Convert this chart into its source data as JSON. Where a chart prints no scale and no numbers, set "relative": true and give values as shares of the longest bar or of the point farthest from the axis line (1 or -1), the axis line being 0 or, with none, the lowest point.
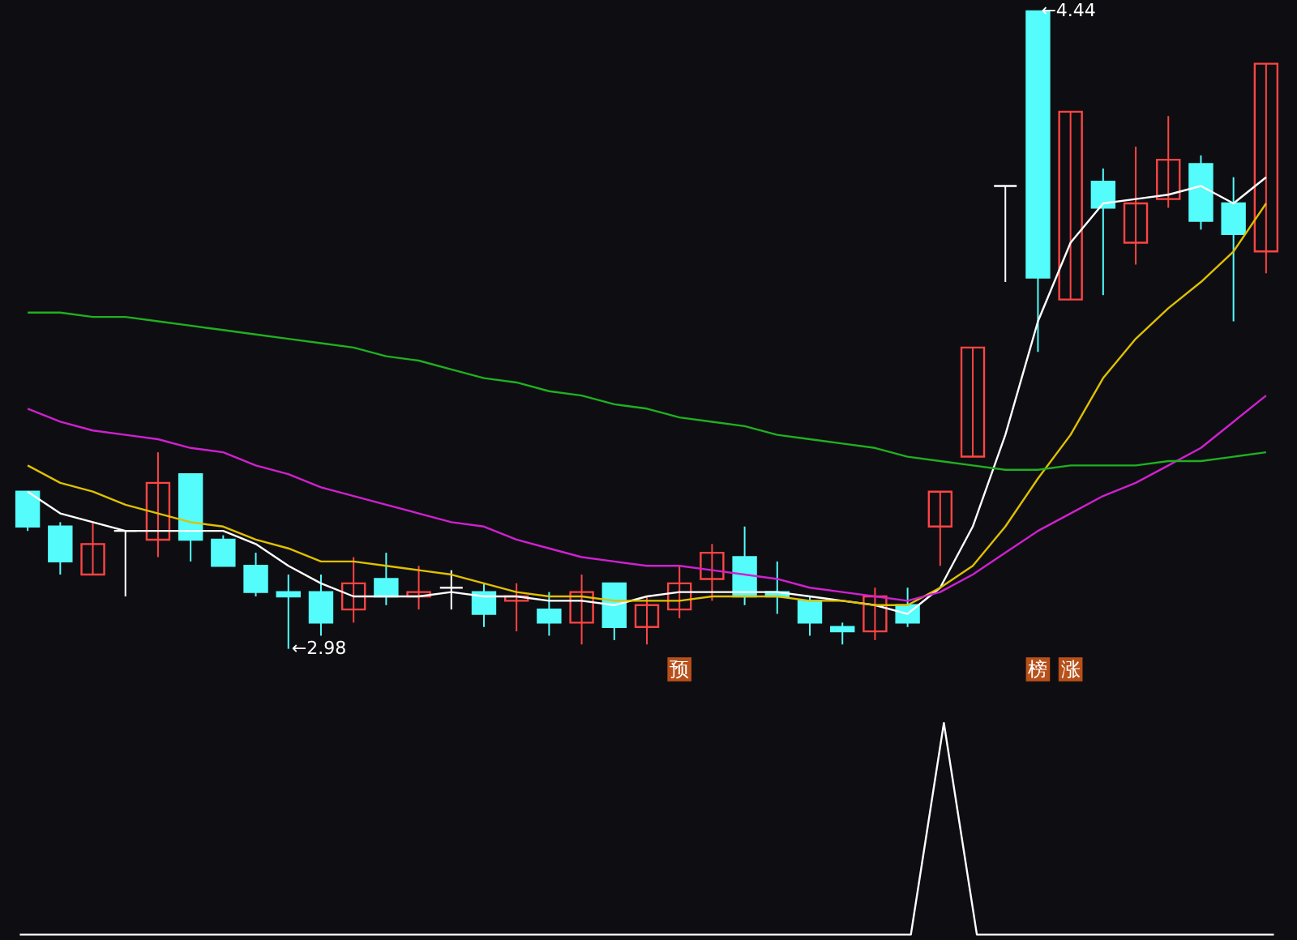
{
  "chart_data": [
    {
      "type": "candlestick",
      "categories": [
        null,
        null,
        null,
        null,
        null,
        null,
        null,
        null,
        null,
        null,
        null,
        null,
        null,
        null,
        null,
        null,
        null,
        null,
        null,
        null,
        null,
        null,
        null,
        null,
        null,
        null,
        null,
        null,
        null,
        null,
        null,
        null,
        null,
        null,
        null,
        null,
        null,
        null,
        null
      ],
      "ohlc": [
        [
          3.34,
          3.34,
          3.25,
          3.26
        ],
        [
          3.26,
          3.27,
          3.15,
          3.18
        ],
        [
          3.15,
          3.27,
          3.15,
          3.22
        ],
        [
          3.25,
          3.25,
          3.1,
          3.25
        ],
        [
          3.23,
          3.43,
          3.19,
          3.36
        ],
        [
          3.38,
          3.38,
          3.18,
          3.23
        ],
        [
          3.23,
          3.24,
          3.17,
          3.17
        ],
        [
          3.17,
          3.2,
          3.1,
          3.11
        ],
        [
          3.11,
          3.15,
          2.98,
          3.1
        ],
        [
          3.11,
          3.15,
          3.01,
          3.04
        ],
        [
          3.07,
          3.19,
          3.04,
          3.13
        ],
        [
          3.14,
          3.2,
          3.08,
          3.1
        ],
        [
          3.1,
          3.17,
          3.07,
          3.11
        ],
        [
          3.12,
          3.16,
          3.07,
          3.12
        ],
        [
          3.11,
          3.13,
          3.03,
          3.06
        ],
        [
          3.09,
          3.13,
          3.02,
          3.1
        ],
        [
          3.07,
          3.11,
          3.01,
          3.04
        ],
        [
          3.04,
          3.15,
          2.99,
          3.11
        ],
        [
          3.13,
          3.13,
          3.0,
          3.03
        ],
        [
          3.03,
          3.1,
          2.99,
          3.08
        ],
        [
          3.07,
          3.17,
          3.05,
          3.13
        ],
        [
          3.14,
          3.22,
          3.09,
          3.2
        ],
        [
          3.19,
          3.26,
          3.08,
          3.1
        ],
        [
          3.11,
          3.18,
          3.06,
          3.1
        ],
        [
          3.09,
          3.1,
          3.01,
          3.04
        ],
        [
          3.03,
          3.04,
          2.99,
          3.02
        ],
        [
          3.02,
          3.12,
          3.0,
          3.1
        ],
        [
          3.08,
          3.12,
          3.03,
          3.04
        ],
        [
          3.26,
          3.34,
          3.17,
          3.34
        ],
        [
          3.42,
          3.67,
          3.42,
          3.67
        ],
        [
          4.04,
          4.04,
          3.82,
          4.04
        ],
        [
          4.44,
          4.44,
          3.66,
          3.83
        ],
        [
          3.78,
          4.21,
          3.78,
          4.21
        ],
        [
          4.05,
          4.08,
          3.79,
          3.99
        ],
        [
          3.91,
          4.13,
          3.86,
          4.0
        ],
        [
          4.01,
          4.2,
          3.99,
          4.1
        ],
        [
          4.09,
          4.11,
          3.94,
          3.96
        ],
        [
          4.0,
          4.06,
          3.73,
          3.93
        ],
        [
          3.89,
          4.32,
          3.84,
          4.32
        ]
      ],
      "colors": [
        "#54fcfc",
        "#54fcfc",
        "#ff4444",
        "#ffffff",
        "#ff4444",
        "#54fcfc",
        "#54fcfc",
        "#54fcfc",
        "#54fcfc",
        "#54fcfc",
        "#ff4444",
        "#54fcfc",
        "#ff4444",
        "#ffffff",
        "#54fcfc",
        "#ff4444",
        "#54fcfc",
        "#ff4444",
        "#54fcfc",
        "#ff4444",
        "#ff4444",
        "#ff4444",
        "#54fcfc",
        "#54fcfc",
        "#54fcfc",
        "#54fcfc",
        "#ff4444",
        "#54fcfc",
        "#ff4444",
        "#ff4444",
        "#ffffff",
        "#54fcfc",
        "#ff4444",
        "#54fcfc",
        "#ff4444",
        "#ff4444",
        "#54fcfc",
        "#54fcfc",
        "#ff4444"
      ],
      "value_labels": [
        null,
        null,
        null,
        null,
        null,
        null,
        null,
        null,
        null,
        null,
        null,
        null,
        null,
        null,
        null,
        null,
        null,
        null,
        null,
        null,
        "预",
        null,
        null,
        null,
        null,
        null,
        null,
        null,
        null,
        null,
        null,
        "榜",
        "涨",
        null,
        null,
        null,
        null,
        null,
        null
      ],
      "series": [
        {
          "type": "line",
          "color": "#ffffff",
          "values": [
            3.34,
            3.29,
            3.27,
            3.25,
            3.25,
            3.25,
            3.25,
            3.22,
            3.17,
            3.13,
            3.1,
            3.1,
            3.1,
            3.11,
            3.1,
            3.1,
            3.09,
            3.09,
            3.08,
            3.1,
            3.11,
            3.11,
            3.11,
            3.11,
            3.1,
            3.09,
            3.08,
            3.06,
            3.12,
            3.26,
            3.47,
            3.73,
            3.91,
            4.0,
            4.01,
            4.02,
            4.04,
            4.0,
            4.06
          ]
        },
        {
          "type": "line",
          "color": "#e0c000",
          "values": [
            3.4,
            3.36,
            3.34,
            3.31,
            3.29,
            3.27,
            3.26,
            3.23,
            3.21,
            3.18,
            3.18,
            3.17,
            3.16,
            3.15,
            3.13,
            3.11,
            3.1,
            3.1,
            3.09,
            3.09,
            3.09,
            3.1,
            3.1,
            3.1,
            3.09,
            3.09,
            3.08,
            3.08,
            3.12,
            3.17,
            3.26,
            3.37,
            3.47,
            3.6,
            3.69,
            3.76,
            3.82,
            3.89,
            4.0
          ]
        },
        {
          "type": "line",
          "color": "#d020d0",
          "values": [
            3.53,
            3.5,
            3.48,
            3.47,
            3.46,
            3.44,
            3.43,
            3.4,
            3.38,
            3.35,
            3.33,
            3.31,
            3.29,
            3.27,
            3.26,
            3.23,
            3.21,
            3.19,
            3.18,
            3.17,
            3.17,
            3.16,
            3.15,
            3.14,
            3.12,
            3.11,
            3.1,
            3.09,
            3.11,
            3.15,
            3.2,
            3.25,
            3.29,
            3.33,
            3.36,
            3.4,
            3.44,
            3.5,
            3.56
          ]
        },
        {
          "type": "line",
          "color": "#20b020",
          "values": [
            3.75,
            3.75,
            3.74,
            3.74,
            3.73,
            3.72,
            3.71,
            3.7,
            3.69,
            3.68,
            3.67,
            3.65,
            3.64,
            3.62,
            3.6,
            3.59,
            3.57,
            3.56,
            3.54,
            3.53,
            3.51,
            3.5,
            3.49,
            3.47,
            3.46,
            3.45,
            3.44,
            3.42,
            3.41,
            3.4,
            3.39,
            3.39,
            3.4,
            3.4,
            3.4,
            3.41,
            3.41,
            3.42,
            3.43
          ]
        }
      ],
      "annotations": [
        "←4.44",
        "←2.98"
      ]
    },
    {
      "type": "line",
      "relative": true,
      "categories": [
        null,
        null,
        null,
        null,
        null,
        null,
        null,
        null,
        null,
        null,
        null,
        null,
        null,
        null,
        null,
        null,
        null,
        null,
        null,
        null,
        null,
        null,
        null,
        null,
        null,
        null,
        null,
        null,
        null,
        null,
        null,
        null,
        null,
        null,
        null,
        null,
        null,
        null,
        null
      ],
      "series": [
        {
          "color": "#ffffff",
          "values": [
            0,
            0,
            0,
            0,
            0,
            0,
            0,
            0,
            0,
            0,
            0,
            0,
            0,
            0,
            0,
            0,
            0,
            0,
            0,
            0,
            0,
            0,
            0,
            0,
            0,
            0,
            0,
            0,
            1,
            0,
            0,
            0,
            0,
            0,
            0,
            0,
            0,
            0,
            0
          ]
        }
      ]
    }
  ]
}
